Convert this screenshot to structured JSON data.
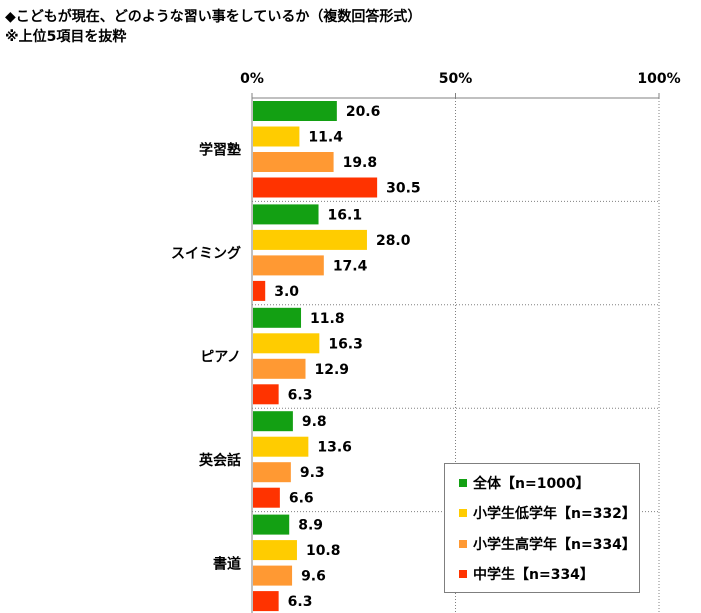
{
  "title": "◆こどもが現在、どのような習い事をしているか（複数回答形式）",
  "subtitle": "※上位5項目を抜粋",
  "chart_data": {
    "type": "bar",
    "orientation": "horizontal",
    "xlim": [
      0,
      100
    ],
    "x_ticks": [
      "0%",
      "50%",
      "100%"
    ],
    "grid": true,
    "legend_position": "bottom-right",
    "categories": [
      "学習塾",
      "スイミング",
      "ピアノ",
      "英会話",
      "書道"
    ],
    "series": [
      {
        "name": "全体【n=1000】",
        "color": "#13a013",
        "values": [
          20.6,
          16.1,
          11.8,
          9.8,
          8.9
        ]
      },
      {
        "name": "小学生低学年【n=332】",
        "color": "#ffcc00",
        "values": [
          11.4,
          28.0,
          16.3,
          13.6,
          10.8
        ]
      },
      {
        "name": "小学生高学年【n=334】",
        "color": "#ff9933",
        "values": [
          19.8,
          17.4,
          12.9,
          9.3,
          9.6
        ]
      },
      {
        "name": "中学生【n=334】",
        "color": "#ff3300",
        "values": [
          30.5,
          3.0,
          6.3,
          6.6,
          6.3
        ]
      }
    ]
  }
}
